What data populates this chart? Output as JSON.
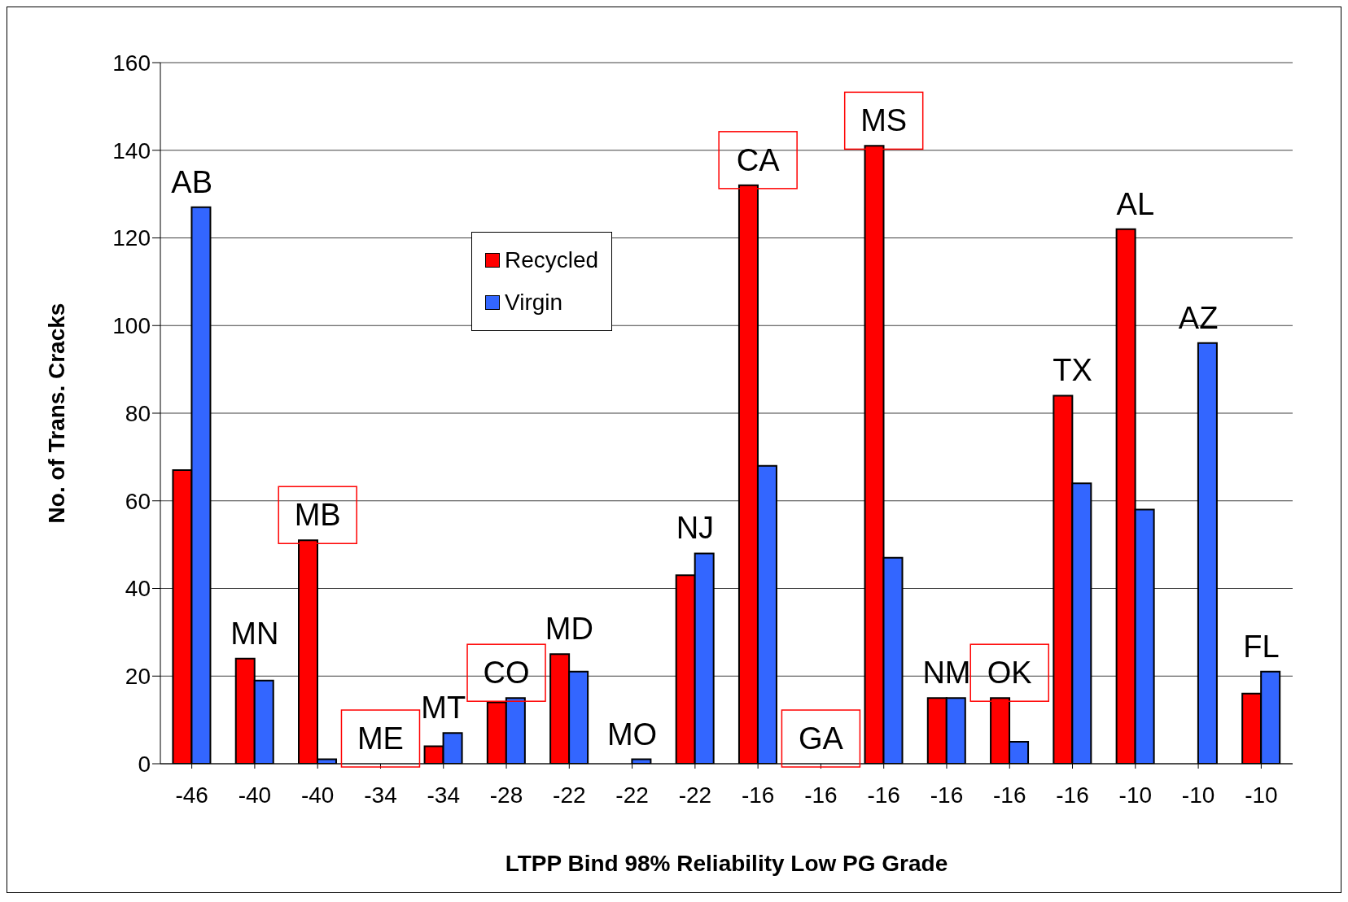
{
  "chart_data": {
    "type": "bar",
    "xlabel": "LTPP Bind 98% Reliability Low PG Grade",
    "ylabel": "No. of Trans. Cracks",
    "categories": [
      "-46",
      "-40",
      "-40",
      "-34",
      "-34",
      "-28",
      "-22",
      "-22",
      "-22",
      "-16",
      "-16",
      "-16",
      "-16",
      "-16",
      "-16",
      "-10",
      "-10",
      "-10"
    ],
    "series": [
      {
        "name": "Recycled",
        "color": "#ff0000",
        "values": [
          67,
          24,
          51,
          0,
          4,
          14,
          25,
          0,
          43,
          132,
          0,
          141,
          15,
          15,
          84,
          122,
          0,
          16
        ]
      },
      {
        "name": "Virgin",
        "color": "#3366ff",
        "values": [
          127,
          19,
          1,
          0,
          7,
          15,
          21,
          1,
          48,
          68,
          0,
          47,
          15,
          5,
          64,
          58,
          96,
          21
        ]
      }
    ],
    "annotations": [
      "AB",
      "MN",
      "MB",
      "ME",
      "MT",
      "CO",
      "MD",
      "MO",
      "NJ",
      "CA",
      "GA",
      "MS",
      "NM",
      "OK",
      "TX",
      "AL",
      "AZ",
      "FL"
    ],
    "ylim": [
      0,
      160
    ],
    "yticks": [
      0,
      20,
      40,
      60,
      80,
      100,
      120,
      140,
      160
    ],
    "grid": "y",
    "legend": "top left"
  }
}
